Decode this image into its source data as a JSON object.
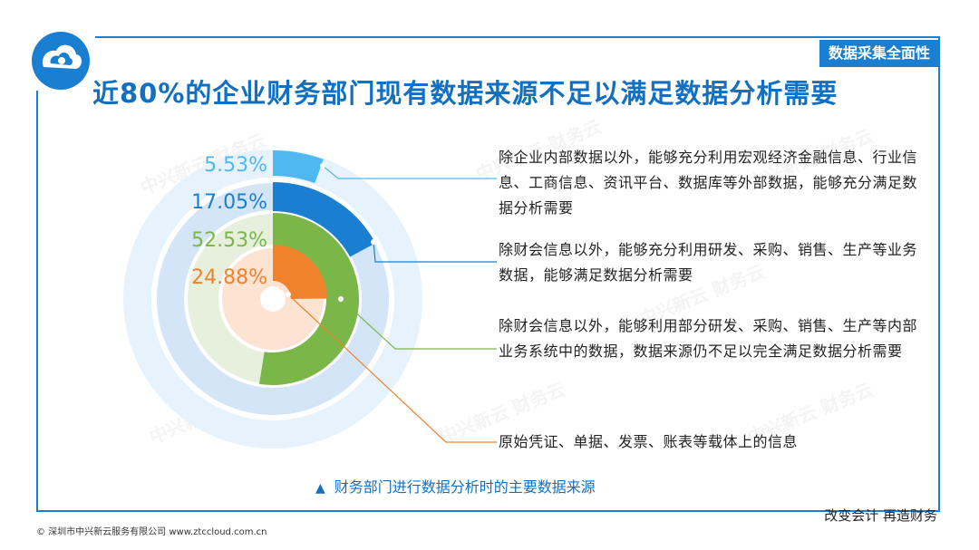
{
  "header": {
    "tag": "数据采集全面性",
    "title": "近80%的企业财务部门现有数据来源不足以满足数据分析需要"
  },
  "chart_data": {
    "type": "radial-bar",
    "title": "",
    "max": 100,
    "series": [
      {
        "value": 5.53,
        "label": "5.53%",
        "color": "#4fb8f0",
        "desc": "除企业内部数据以外，能够充分利用宏观经济金融信息、行业信息、工商信息、资讯平台、数据库等外部数据，能够充分满足数据分析需要"
      },
      {
        "value": 17.05,
        "label": "17.05%",
        "color": "#1a7fd0",
        "desc": "除财会信息以外，能够充分利用研发、采购、销售、生产等业务数据，能够满足数据分析需要"
      },
      {
        "value": 52.53,
        "label": "52.53%",
        "color": "#7ab648",
        "desc": "除财会信息以外，能够利用部分研发、采购、销售、生产等内部业务系统中的数据，数据来源仍不足以完全满足数据分析需要"
      },
      {
        "value": 24.88,
        "label": "24.88%",
        "color": "#f0822e",
        "desc": "原始凭证、单据、发票、账表等载体上的信息"
      }
    ],
    "caption": "财务部门进行数据分析时的主要数据来源"
  },
  "footer": {
    "slogan": "改变会计   再造财务",
    "copyright": "© 深圳市中兴新云服务有限公司   www.ztccloud.com.cn"
  },
  "watermark": "中兴新云 财务云",
  "icons": {
    "logo": "cloud-logo-icon",
    "caption_marker": "triangle-up-icon"
  }
}
